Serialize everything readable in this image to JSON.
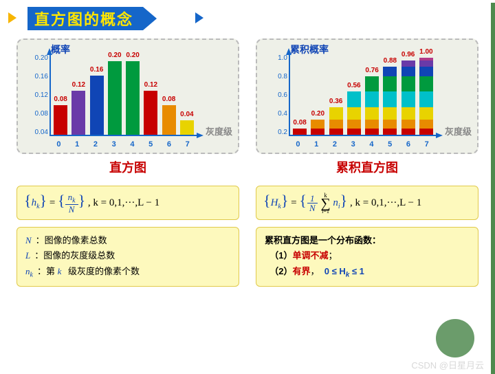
{
  "header": {
    "title": "直方图的概念"
  },
  "colors": {
    "header_bg": "#1566c9",
    "header_text": "#ffe600",
    "triangle": "#f7b500",
    "axis": "#1566c9",
    "value_label": "#c70000",
    "panel_bg": "#eef0e8",
    "formula_bg": "#fdf9bd",
    "accent_red": "#c70000",
    "accent_blue": "#1045b5",
    "right_bar": "#4e8a4e",
    "circle": "#6b9c6b"
  },
  "histogram": {
    "type": "bar",
    "ylabel": "概率",
    "xlabel": "灰度级",
    "yticks": [
      "0.04",
      "0.08",
      "0.12",
      "0.16",
      "0.20"
    ],
    "ymax": 0.22,
    "categories": [
      "0",
      "1",
      "2",
      "3",
      "4",
      "5",
      "6",
      "7"
    ],
    "values": [
      0.08,
      0.12,
      0.16,
      0.2,
      0.2,
      0.12,
      0.08,
      0.04
    ],
    "value_labels": [
      "0.08",
      "0.12",
      "0.16",
      "0.20",
      "0.20",
      "0.12",
      "0.08",
      "0.04"
    ],
    "bar_colors": [
      "#c70000",
      "#6a3aa8",
      "#1045b5",
      "#009a3e",
      "#009a3e",
      "#c70000",
      "#e88b00",
      "#e8d300"
    ],
    "caption": "直方图"
  },
  "cumulative": {
    "type": "stacked-bar",
    "ylabel": "累积概率",
    "xlabel": "灰度级",
    "yticks": [
      "0.2",
      "0.4",
      "0.6",
      "0.8",
      "1.0"
    ],
    "ymax": 1.05,
    "categories": [
      "0",
      "1",
      "2",
      "3",
      "4",
      "5",
      "6",
      "7"
    ],
    "cum_values": [
      0.08,
      0.2,
      0.36,
      0.56,
      0.76,
      0.88,
      0.96,
      1.0
    ],
    "value_labels": [
      "0.08",
      "0.20",
      "0.36",
      "0.56",
      "0.76",
      "0.88",
      "0.96",
      "1.00"
    ],
    "segment_heights": [
      0.08,
      0.12,
      0.16,
      0.2,
      0.2,
      0.12,
      0.08,
      0.04
    ],
    "segment_colors": [
      "#c70000",
      "#e88b00",
      "#e8d300",
      "#00c0c9",
      "#009a3e",
      "#1045b5",
      "#6a3aa8",
      "#b03a8a"
    ],
    "caption": "累积直方图"
  },
  "formula_left": {
    "lhs": "h",
    "num": "n",
    "den": "N",
    "tail": ", k = 0,1,···,L − 1"
  },
  "formula_right": {
    "lhs": "H",
    "frac_den": "N",
    "sum_var": "n",
    "sum_top": "k",
    "sum_bot": "i=1",
    "tail": ", k = 0,1,···,L − 1"
  },
  "notes_left": {
    "l1_sym": "N",
    "l1": "：图像的像素总数",
    "l2_sym": "L",
    "l2": "：图像的灰度级总数",
    "l3_sym": "n",
    "l3_sub": "k",
    "l3": "：第 ",
    "l3_mid": "k",
    "l3_end": " 级灰度的像素个数"
  },
  "notes_right": {
    "title": "累积直方图是一个分布函数：",
    "p1_num": "（1）",
    "p1": "单调不减",
    "p1_end": "；",
    "p2_num": "（2）",
    "p2": "有界",
    "p2_end": "，",
    "p2_formula": "0 ≤ H",
    "p2_sub": "k",
    "p2_tail": " ≤ 1"
  },
  "watermark": "CSDN @日星月云"
}
